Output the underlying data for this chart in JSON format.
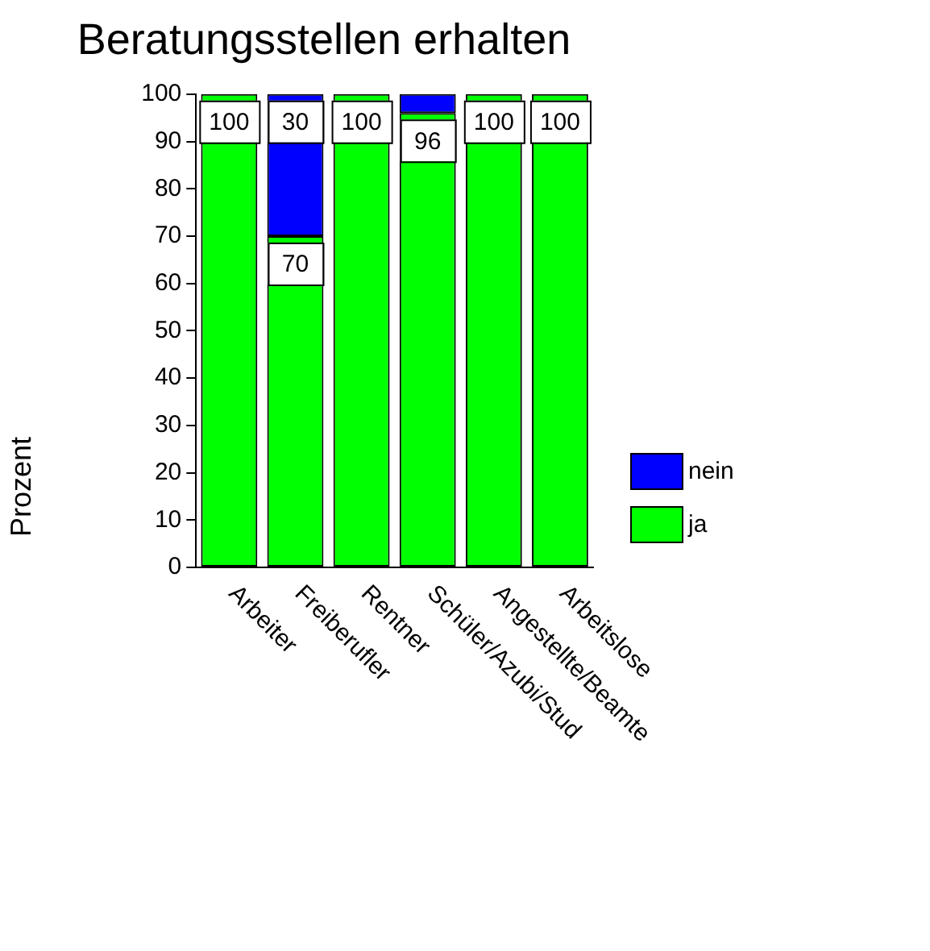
{
  "chart_data": {
    "type": "bar",
    "title": "Beratungsstellen erhalten",
    "ylabel": "Prozent",
    "categories": [
      "Arbeiter",
      "Freiberufler",
      "Rentner",
      "Schüler/Azubi/Stud",
      "Angestellte/Beamte",
      "Arbeitslose"
    ],
    "stacked": true,
    "ylim": [
      0,
      100
    ],
    "yticks": [
      0,
      10,
      20,
      30,
      40,
      50,
      60,
      70,
      80,
      90,
      100
    ],
    "grid": false,
    "legend": "bottom right",
    "series": [
      {
        "name": "ja",
        "color": "#00ff00",
        "values": [
          100,
          70,
          100,
          96,
          100,
          100
        ],
        "value_labels": [
          "100",
          "70",
          "100",
          "96",
          "100",
          "100"
        ]
      },
      {
        "name": "nein",
        "color": "#0000ff",
        "values": [
          0,
          30,
          0,
          4,
          0,
          0
        ],
        "value_labels": [
          null,
          "30",
          null,
          null,
          null,
          null
        ]
      }
    ]
  }
}
